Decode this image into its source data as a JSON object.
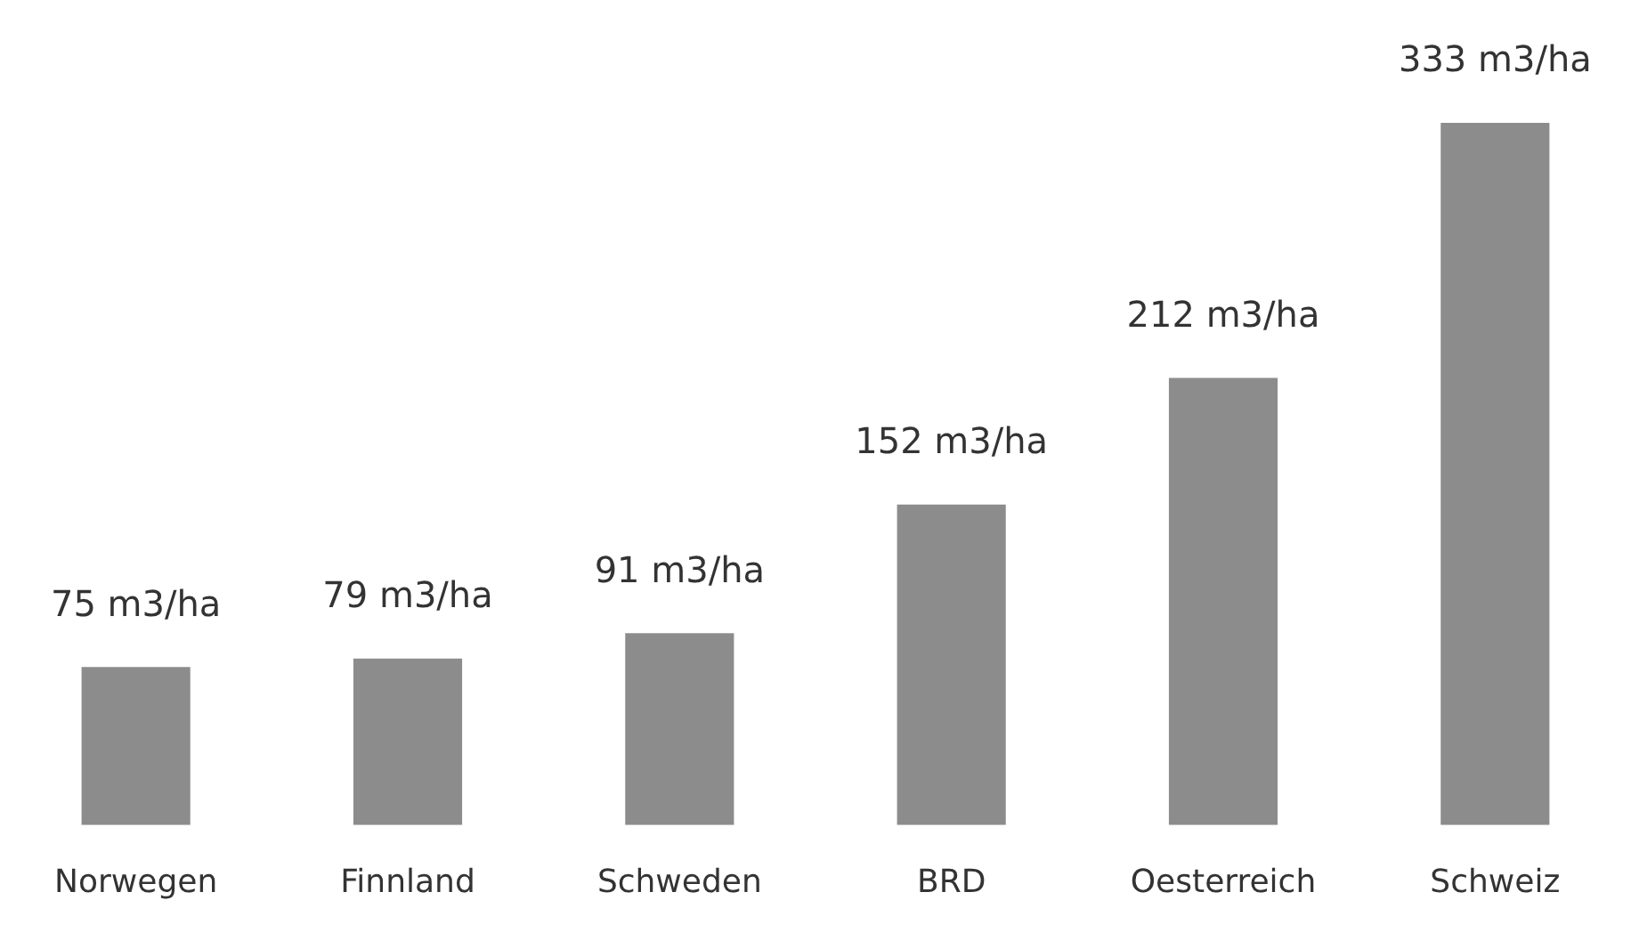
{
  "chart_data": {
    "type": "bar",
    "categories": [
      "Norwegen",
      "Finnland",
      "Schweden",
      "BRD",
      "Oesterreich",
      "Schweiz"
    ],
    "values": [
      75,
      79,
      91,
      152,
      212,
      333
    ],
    "value_labels": [
      "75 m3/ha",
      "79 m3/ha",
      "91 m3/ha",
      "152 m3/ha",
      "212 m3/ha",
      "333 m3/ha"
    ],
    "color": "#8c8c8c",
    "grid": false,
    "legend": false
  }
}
